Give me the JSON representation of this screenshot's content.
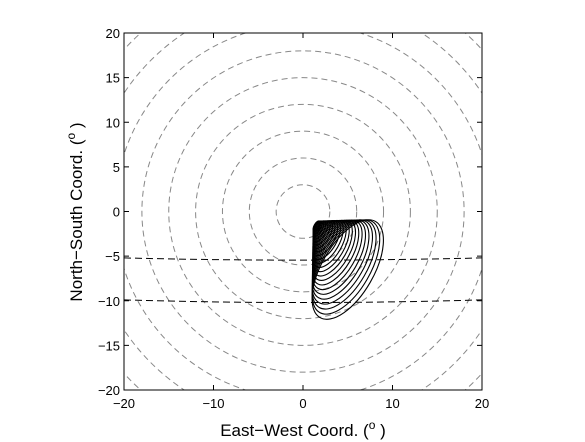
{
  "chart_data": {
    "type": "contour",
    "xlabel": "East−West Coord. (",
    "ylabel": "North−South Coord. (",
    "axis_unit_symbol": "o",
    "axis_label_close": " )",
    "xlim": [
      -20,
      20
    ],
    "ylim": [
      -20,
      20
    ],
    "xticks": [
      -20,
      -10,
      0,
      10,
      20
    ],
    "yticks": [
      -20,
      -15,
      -10,
      -5,
      0,
      5,
      10,
      15,
      20
    ],
    "xtick_labels": [
      "−20",
      "−10",
      "0",
      "10",
      "20"
    ],
    "ytick_labels": [
      "−20",
      "−15",
      "−10",
      "−5",
      "0",
      "5",
      "10",
      "15",
      "20"
    ],
    "grid": false,
    "line_color": "#000000",
    "reference_circles": {
      "center": [
        0,
        0
      ],
      "radii": [
        3,
        6,
        9,
        12,
        15,
        18,
        21,
        24,
        27
      ],
      "style": "dashed",
      "color": "#888888"
    },
    "dashed_curves": [
      {
        "points": [
          [
            -20,
            -5.2
          ],
          [
            0,
            -5.45
          ],
          [
            20,
            -5.2
          ]
        ]
      },
      {
        "points": [
          [
            -20,
            -9.9
          ],
          [
            0,
            -10.2
          ],
          [
            20,
            -9.9
          ]
        ]
      }
    ],
    "contours": {
      "count": 24,
      "style": "solid",
      "color": "#000000",
      "innermost": {
        "center": [
          1.5,
          -1.6
        ],
        "semi_axes": [
          0.6,
          0.25
        ],
        "angle_deg": -60
      },
      "outermost": {
        "center": [
          5.0,
          -6.5
        ],
        "semi_axes": [
          6.2,
          2.9
        ],
        "angle_deg": -60
      }
    }
  }
}
